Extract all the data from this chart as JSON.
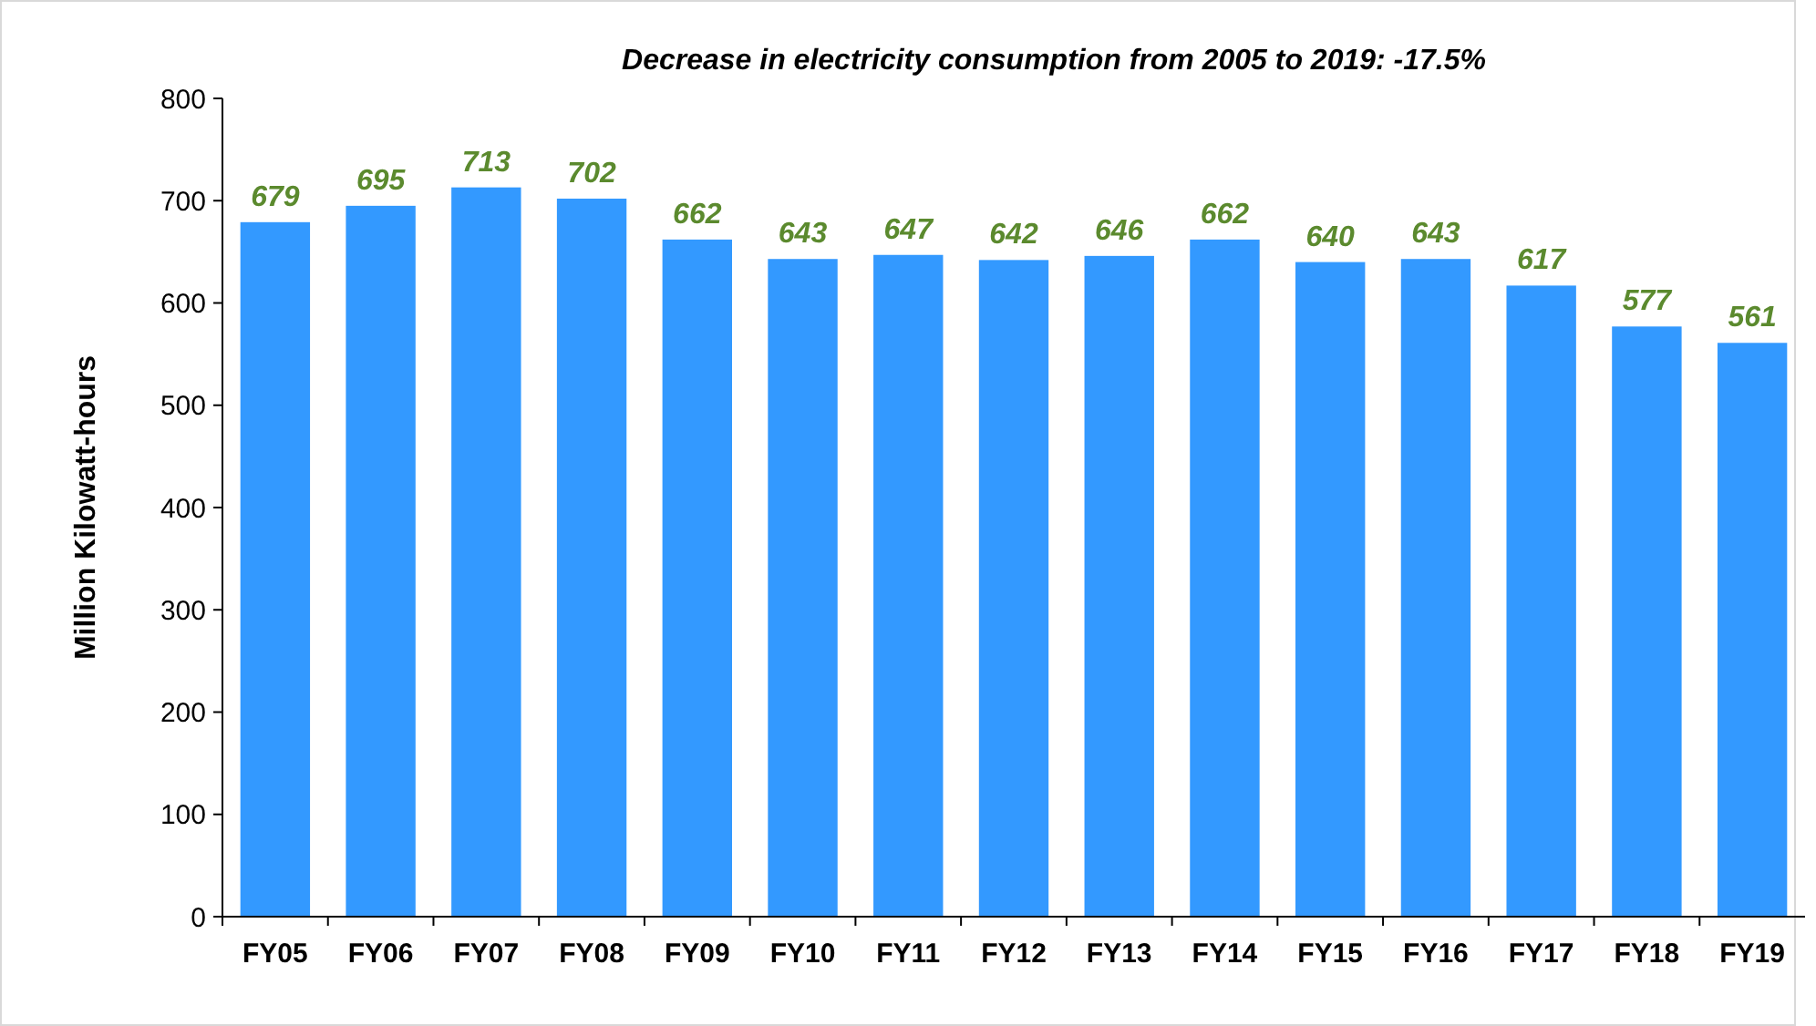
{
  "chart_data": {
    "type": "bar",
    "title": "Decrease in electricity consumption from 2005 to 2019: -17.5%",
    "ylabel": "Million Kilowatt-hours",
    "categories": [
      "FY05",
      "FY06",
      "FY07",
      "FY08",
      "FY09",
      "FY10",
      "FY11",
      "FY12",
      "FY13",
      "FY14",
      "FY15",
      "FY16",
      "FY17",
      "FY18",
      "FY19"
    ],
    "values": [
      679,
      695,
      713,
      702,
      662,
      643,
      647,
      642,
      646,
      662,
      640,
      643,
      617,
      577,
      561
    ],
    "color": "#3399ff",
    "ylim": [
      0,
      800
    ],
    "yticks": [
      0,
      100,
      200,
      300,
      400,
      500,
      600,
      700,
      800
    ],
    "grid": false,
    "data_labels": true
  }
}
